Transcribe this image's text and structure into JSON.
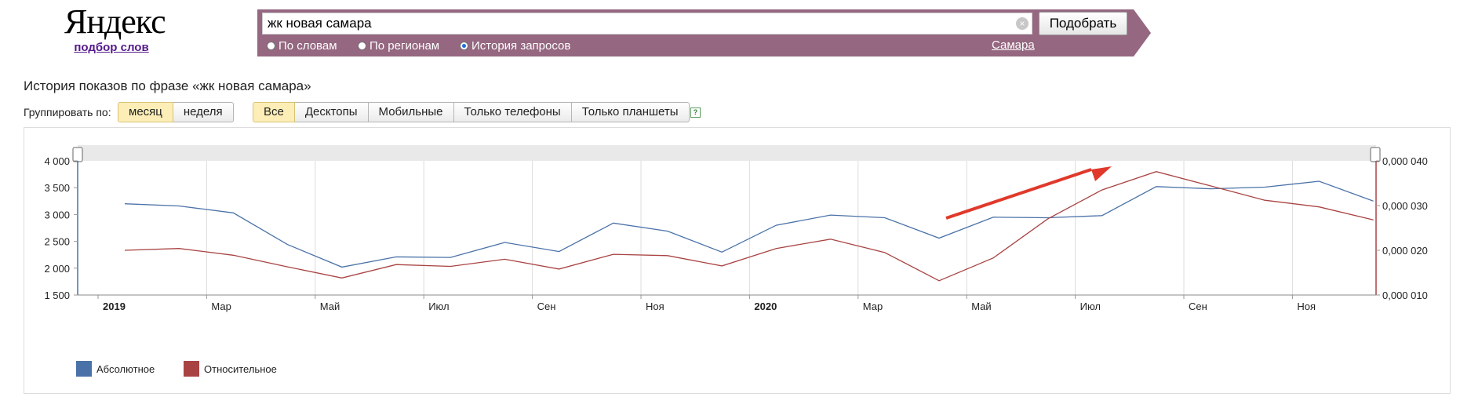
{
  "logo": {
    "brand": "Яндекс",
    "subtitle": "подбор слов"
  },
  "search": {
    "query": "жк новая самара",
    "submit_label": "Подобрать",
    "modes": [
      {
        "label": "По словам",
        "selected": false
      },
      {
        "label": "По регионам",
        "selected": false
      },
      {
        "label": "История запросов",
        "selected": true
      }
    ],
    "region": "Самара"
  },
  "page_title": "История показов по фразе «жк новая самара»",
  "grouping": {
    "label": "Группировать по:",
    "options": [
      {
        "label": "месяц",
        "active": true
      },
      {
        "label": "неделя",
        "active": false
      }
    ]
  },
  "devices": [
    {
      "label": "Все",
      "active": true
    },
    {
      "label": "Десктопы",
      "active": false
    },
    {
      "label": "Мобильные",
      "active": false
    },
    {
      "label": "Только телефоны",
      "active": false
    },
    {
      "label": "Только планшеты",
      "active": false
    }
  ],
  "help_icon": "question-icon",
  "colors": {
    "absolute": "#4a72a8",
    "relative": "#a94343",
    "band": "#956780",
    "arrow": "#e0392b"
  },
  "chart_data": {
    "type": "line",
    "x": [
      "2019-01",
      "2019-02",
      "2019-03",
      "2019-04",
      "2019-05",
      "2019-06",
      "2019-07",
      "2019-08",
      "2019-09",
      "2019-10",
      "2019-11",
      "2019-12",
      "2020-01",
      "2020-02",
      "2020-03",
      "2020-04",
      "2020-05",
      "2020-06",
      "2020-07",
      "2020-08",
      "2020-09",
      "2020-10",
      "2020-11",
      "2020-12"
    ],
    "x_tick_labels": [
      {
        "label": "2019",
        "bold": true
      },
      {
        "label": "Мар"
      },
      {
        "label": "Май"
      },
      {
        "label": "Июл"
      },
      {
        "label": "Сен"
      },
      {
        "label": "Ноя"
      },
      {
        "label": "2020",
        "bold": true
      },
      {
        "label": "Мар"
      },
      {
        "label": "Май"
      },
      {
        "label": "Июл"
      },
      {
        "label": "Сен"
      },
      {
        "label": "Ноя"
      }
    ],
    "y_left": {
      "ylim": [
        1500,
        4000
      ],
      "ticks": [
        "1 500",
        "2 000",
        "2 500",
        "3 000",
        "3 500",
        "4 000"
      ]
    },
    "y_right": {
      "ylim": [
        1e-05,
        4e-05
      ],
      "ticks": [
        "0,000 010",
        "0,000 020",
        "0,000 030",
        "0,000 040"
      ]
    },
    "series": [
      {
        "name": "Абсолютное",
        "axis": "left",
        "values": [
          3200,
          3160,
          3030,
          2440,
          2020,
          2210,
          2200,
          2480,
          2310,
          2840,
          2690,
          2300,
          2800,
          2990,
          2940,
          2560,
          2950,
          2940,
          2980,
          3520,
          3480,
          3510,
          3620,
          3250
        ]
      },
      {
        "name": "Относительное",
        "axis": "right",
        "values": [
          2e-05,
          2.04e-05,
          1.89e-05,
          1.63e-05,
          1.38e-05,
          1.68e-05,
          1.64e-05,
          1.8e-05,
          1.58e-05,
          1.91e-05,
          1.88e-05,
          1.65e-05,
          2.04e-05,
          2.25e-05,
          1.95e-05,
          1.32e-05,
          1.83e-05,
          2.7e-05,
          3.35e-05,
          3.76e-05,
          3.44e-05,
          3.12e-05,
          2.97e-05,
          2.68e-05
        ]
      }
    ],
    "grid": true,
    "legend_position": "bottom-left"
  }
}
